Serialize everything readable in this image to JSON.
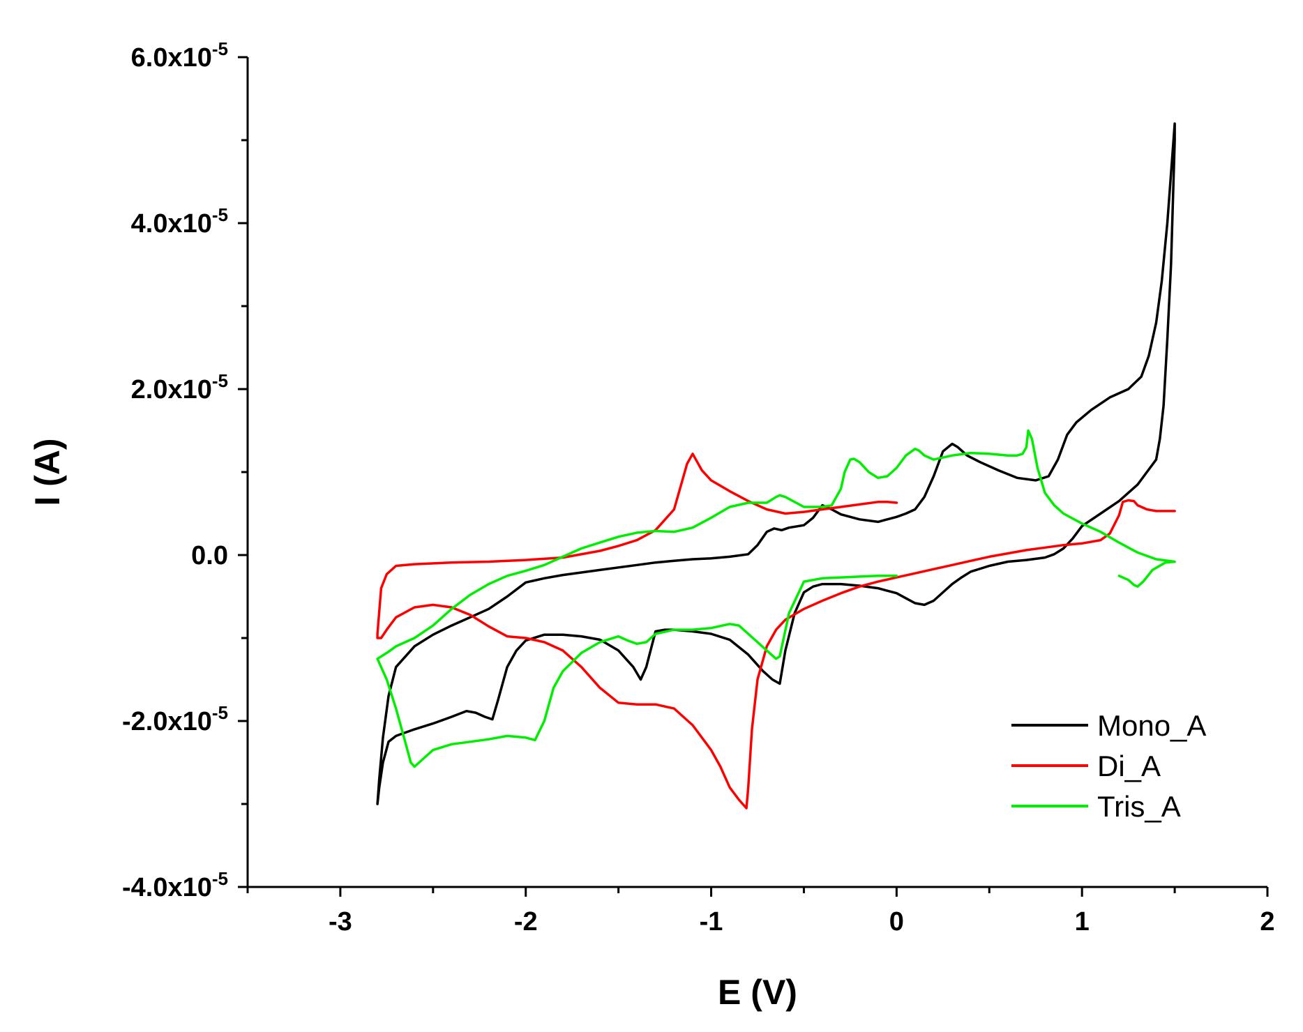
{
  "chart_data": {
    "type": "line",
    "title": "",
    "xlabel": "E (V)",
    "ylabel": "I (A)",
    "xlim": [
      -3.5,
      2
    ],
    "ylim": [
      -4e-05,
      6e-05
    ],
    "xticks": [
      -3,
      -2,
      -1,
      0,
      1,
      2
    ],
    "xtick_labels": [
      "-3",
      "-2",
      "-1",
      "0",
      "1",
      "2"
    ],
    "yticks": [
      6e-05,
      4e-05,
      2e-05,
      0.0,
      -2e-05,
      -4e-05
    ],
    "ytick_labels": [
      {
        "base": "6.0x10",
        "exp": "-5"
      },
      {
        "base": "4.0x10",
        "exp": "-5"
      },
      {
        "base": "2.0x10",
        "exp": "-5"
      },
      {
        "base": "0.0",
        "exp": ""
      },
      {
        "base": "-2.0x10",
        "exp": "-5"
      },
      {
        "base": "-4.0x10",
        "exp": "-5"
      }
    ],
    "grid": false,
    "legend_position": "bottom-right",
    "series": [
      {
        "name": "Mono_A",
        "color": "#000000",
        "x": [
          -2.8,
          -2.79,
          -2.77,
          -2.74,
          -2.7,
          -2.6,
          -2.5,
          -2.4,
          -2.3,
          -2.2,
          -2.1,
          -2.0,
          -1.9,
          -1.8,
          -1.7,
          -1.6,
          -1.5,
          -1.4,
          -1.3,
          -1.2,
          -1.1,
          -1.0,
          -0.9,
          -0.8,
          -0.75,
          -0.7,
          -0.66,
          -0.62,
          -0.58,
          -0.5,
          -0.45,
          -0.4,
          -0.35,
          -0.3,
          -0.2,
          -0.1,
          -0.05,
          0.0,
          0.05,
          0.1,
          0.15,
          0.2,
          0.25,
          0.3,
          0.33,
          0.38,
          0.45,
          0.55,
          0.65,
          0.75,
          0.82,
          0.87,
          0.92,
          0.97,
          1.05,
          1.15,
          1.25,
          1.32,
          1.36,
          1.4,
          1.43,
          1.46,
          1.48,
          1.5,
          1.5,
          1.48,
          1.46,
          1.44,
          1.42,
          1.4,
          1.35,
          1.3,
          1.2,
          1.1,
          1.0,
          0.95,
          0.9,
          0.85,
          0.8,
          0.7,
          0.6,
          0.5,
          0.4,
          0.35,
          0.3,
          0.25,
          0.2,
          0.15,
          0.1,
          0.05,
          0.0,
          -0.05,
          -0.1,
          -0.2,
          -0.3,
          -0.4,
          -0.45,
          -0.5,
          -0.55,
          -0.6,
          -0.63,
          -0.67,
          -0.72,
          -0.8,
          -0.9,
          -1.0,
          -1.1,
          -1.2,
          -1.25,
          -1.3,
          -1.35,
          -1.38,
          -1.42,
          -1.5,
          -1.6,
          -1.7,
          -1.8,
          -1.9,
          -2.0,
          -2.05,
          -2.1,
          -2.15,
          -2.18,
          -2.22,
          -2.27,
          -2.32,
          -2.4,
          -2.5,
          -2.6,
          -2.7,
          -2.74,
          -2.77,
          -2.79,
          -2.8
        ],
        "y": [
          -3e-05,
          -2.7e-05,
          -2.2e-05,
          -1.7e-05,
          -1.35e-05,
          -1.1e-05,
          -9.6e-06,
          -8.5e-06,
          -7.5e-06,
          -6.5e-06,
          -5e-06,
          -3.3e-06,
          -2.8e-06,
          -2.4e-06,
          -2.1e-06,
          -1.8e-06,
          -1.5e-06,
          -1.2e-06,
          -9e-07,
          -7e-07,
          -5e-07,
          -4e-07,
          -2e-07,
          1e-07,
          1.2e-06,
          2.8e-06,
          3.2e-06,
          3e-06,
          3.3e-06,
          3.6e-06,
          4.5e-06,
          6e-06,
          5.5e-06,
          4.9e-06,
          4.3e-06,
          4e-06,
          4.3e-06,
          4.6e-06,
          5e-06,
          5.5e-06,
          7e-06,
          9.5e-06,
          1.25e-05,
          1.34e-05,
          1.3e-05,
          1.2e-05,
          1.12e-05,
          1.02e-05,
          9.3e-06,
          9e-06,
          9.5e-06,
          1.15e-05,
          1.45e-05,
          1.6e-05,
          1.75e-05,
          1.9e-05,
          2e-05,
          2.15e-05,
          2.4e-05,
          2.8e-05,
          3.3e-05,
          4e-05,
          4.6e-05,
          5.2e-05,
          5e-05,
          3.5e-05,
          2.6e-05,
          1.8e-05,
          1.4e-05,
          1.15e-05,
          1e-05,
          8.5e-06,
          6.5e-06,
          5e-06,
          3.5e-06,
          2e-06,
          8e-07,
          1e-07,
          -3e-07,
          -6e-07,
          -8e-07,
          -1.3e-06,
          -2e-06,
          -2.7e-06,
          -3.5e-06,
          -4.5e-06,
          -5.5e-06,
          -6e-06,
          -5.8e-06,
          -5.2e-06,
          -4.6e-06,
          -4.3e-06,
          -4e-06,
          -3.7e-06,
          -3.5e-06,
          -3.5e-06,
          -3.8e-06,
          -4.5e-06,
          -7e-06,
          -1.15e-05,
          -1.55e-05,
          -1.5e-05,
          -1.4e-05,
          -1.2e-05,
          -1.02e-05,
          -9.5e-06,
          -9.2e-06,
          -9e-06,
          -9e-06,
          -9.2e-06,
          -1.35e-05,
          -1.5e-05,
          -1.35e-05,
          -1.15e-05,
          -1.02e-05,
          -9.8e-06,
          -9.6e-06,
          -9.6e-06,
          -1.03e-05,
          -1.15e-05,
          -1.35e-05,
          -1.75e-05,
          -1.98e-05,
          -1.95e-05,
          -1.9e-05,
          -1.88e-05,
          -1.95e-05,
          -2.03e-05,
          -2.1e-05,
          -2.18e-05,
          -2.25e-05,
          -2.5e-05,
          -2.8e-05,
          -3e-05
        ]
      },
      {
        "name": "Di_A",
        "color": "#ff0000",
        "x": [
          0.0,
          -0.05,
          -0.1,
          -0.2,
          -0.3,
          -0.4,
          -0.5,
          -0.6,
          -0.7,
          -0.8,
          -0.9,
          -1.0,
          -1.05,
          -1.08,
          -1.1,
          -1.13,
          -1.2,
          -1.3,
          -1.4,
          -1.5,
          -1.6,
          -1.8,
          -2.0,
          -2.2,
          -2.4,
          -2.6,
          -2.7,
          -2.75,
          -2.78,
          -2.8,
          -2.8,
          -2.78,
          -2.75,
          -2.7,
          -2.6,
          -2.5,
          -2.4,
          -2.3,
          -2.2,
          -2.1,
          -2.0,
          -1.9,
          -1.8,
          -1.7,
          -1.6,
          -1.5,
          -1.4,
          -1.3,
          -1.2,
          -1.1,
          -1.0,
          -0.95,
          -0.9,
          -0.85,
          -0.81,
          -0.8,
          -0.78,
          -0.75,
          -0.7,
          -0.65,
          -0.6,
          -0.5,
          -0.4,
          -0.3,
          -0.2,
          -0.1,
          0.0,
          0.1,
          0.2,
          0.3,
          0.4,
          0.5,
          0.6,
          0.7,
          0.8,
          0.9,
          1.0,
          1.1,
          1.15,
          1.2,
          1.22,
          1.25,
          1.28,
          1.3,
          1.35,
          1.4,
          1.5
        ],
        "y": [
          6.3e-06,
          6.4e-06,
          6.4e-06,
          6.1e-06,
          5.8e-06,
          5.5e-06,
          5.2e-06,
          5e-06,
          5.5e-06,
          6.5e-06,
          7.7e-06,
          9e-06,
          1.02e-05,
          1.14e-05,
          1.22e-05,
          1.1e-05,
          5.5e-06,
          3e-06,
          1.8e-06,
          1.1e-06,
          5e-07,
          -3e-07,
          -6e-07,
          -8e-07,
          -9e-07,
          -1.1e-06,
          -1.3e-06,
          -2.3e-06,
          -4e-06,
          -9.5e-06,
          -1e-05,
          -1e-05,
          -9e-06,
          -7.5e-06,
          -6.3e-06,
          -6e-06,
          -6.3e-06,
          -7.2e-06,
          -8.6e-06,
          -9.8e-06,
          -1e-05,
          -1.05e-05,
          -1.15e-05,
          -1.35e-05,
          -1.6e-05,
          -1.78e-05,
          -1.8e-05,
          -1.8e-05,
          -1.85e-05,
          -2.05e-05,
          -2.35e-05,
          -2.55e-05,
          -2.8e-05,
          -2.95e-05,
          -3.05e-05,
          -2.8e-05,
          -2.1e-05,
          -1.5e-05,
          -1.1e-05,
          -9e-06,
          -7.8e-06,
          -6.5e-06,
          -5.5e-06,
          -4.6e-06,
          -3.8e-06,
          -3.2e-06,
          -2.7e-06,
          -2.2e-06,
          -1.7e-06,
          -1.2e-06,
          -7e-07,
          -2e-07,
          2e-07,
          6e-07,
          9e-07,
          1.2e-06,
          1.4e-06,
          1.8e-06,
          2.6e-06,
          4.8e-06,
          6.4e-06,
          6.6e-06,
          6.5e-06,
          6e-06,
          5.5e-06,
          5.3e-06,
          5.3e-06
        ]
      },
      {
        "name": "Tris_A",
        "color": "#00ee00",
        "x": [
          1.2,
          1.25,
          1.28,
          1.3,
          1.33,
          1.38,
          1.45,
          1.5,
          1.4,
          1.3,
          1.2,
          1.1,
          1.0,
          0.9,
          0.85,
          0.8,
          0.76,
          0.73,
          0.71,
          0.7,
          0.68,
          0.65,
          0.6,
          0.5,
          0.4,
          0.3,
          0.2,
          0.15,
          0.12,
          0.1,
          0.05,
          0.0,
          -0.05,
          -0.1,
          -0.15,
          -0.2,
          -0.23,
          -0.25,
          -0.28,
          -0.3,
          -0.35,
          -0.4,
          -0.5,
          -0.6,
          -0.63,
          -0.65,
          -0.7,
          -0.8,
          -0.9,
          -1.0,
          -1.1,
          -1.2,
          -1.3,
          -1.4,
          -1.5,
          -1.6,
          -1.7,
          -1.8,
          -1.9,
          -2.0,
          -2.1,
          -2.2,
          -2.3,
          -2.4,
          -2.5,
          -2.6,
          -2.7,
          -2.75,
          -2.8,
          -2.75,
          -2.7,
          -2.65,
          -2.62,
          -2.6,
          -2.55,
          -2.5,
          -2.4,
          -2.3,
          -2.2,
          -2.1,
          -2.0,
          -1.95,
          -1.9,
          -1.85,
          -1.8,
          -1.7,
          -1.6,
          -1.5,
          -1.45,
          -1.4,
          -1.35,
          -1.3,
          -1.2,
          -1.1,
          -1.0,
          -0.9,
          -0.85,
          -0.8,
          -0.75,
          -0.7,
          -0.65,
          -0.63,
          -0.58,
          -0.5,
          -0.4,
          -0.3,
          -0.2,
          -0.1,
          0.0
        ],
        "y": [
          -2.5e-06,
          -3e-06,
          -3.6e-06,
          -3.8e-06,
          -3.2e-06,
          -1.8e-06,
          -9e-07,
          -8e-07,
          -5e-07,
          3e-07,
          1.5e-06,
          2.8e-06,
          3.8e-06,
          5e-06,
          6e-06,
          7.5e-06,
          1.05e-05,
          1.4e-05,
          1.5e-05,
          1.3e-05,
          1.22e-05,
          1.2e-05,
          1.2e-05,
          1.22e-05,
          1.23e-05,
          1.2e-05,
          1.15e-05,
          1.2e-05,
          1.26e-05,
          1.28e-05,
          1.2e-05,
          1.05e-05,
          9.5e-06,
          9.3e-06,
          1e-05,
          1.12e-05,
          1.16e-05,
          1.15e-05,
          1e-05,
          8e-06,
          6e-06,
          5.8e-06,
          5.8e-06,
          7e-06,
          7.2e-06,
          7e-06,
          6.3e-06,
          6.3e-06,
          5.8e-06,
          4.5e-06,
          3.3e-06,
          2.8e-06,
          2.9e-06,
          2.7e-06,
          2.2e-06,
          1.5e-06,
          8e-07,
          -2e-07,
          -1.2e-06,
          -1.9e-06,
          -2.5e-06,
          -3.5e-06,
          -4.8e-06,
          -6.5e-06,
          -8.5e-06,
          -1e-05,
          -1.1e-05,
          -1.18e-05,
          -1.25e-05,
          -1.5e-05,
          -1.85e-05,
          -2.25e-05,
          -2.5e-05,
          -2.55e-05,
          -2.45e-05,
          -2.35e-05,
          -2.28e-05,
          -2.25e-05,
          -2.22e-05,
          -2.18e-05,
          -2.2e-05,
          -2.23e-05,
          -2e-05,
          -1.6e-05,
          -1.4e-05,
          -1.18e-05,
          -1.05e-05,
          -9.8e-06,
          -1.03e-05,
          -1.07e-05,
          -1.05e-05,
          -9.5e-06,
          -9e-06,
          -9e-06,
          -8.8e-06,
          -8.3e-06,
          -8.5e-06,
          -9.5e-06,
          -1.05e-05,
          -1.15e-05,
          -1.25e-05,
          -1.22e-05,
          -7e-06,
          -3.2e-06,
          -2.8e-06,
          -2.7e-06,
          -2.6e-06,
          -2.5e-06,
          -2.5e-06
        ]
      }
    ]
  }
}
